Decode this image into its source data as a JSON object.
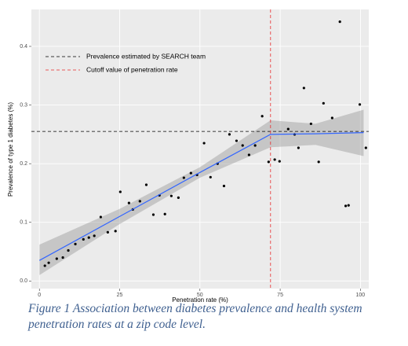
{
  "chart_data": {
    "type": "scatter",
    "x_label": "Penetration rate (%)",
    "y_label": "Prevalence of type 1 diabetes (%)",
    "xlim": [
      -2.5,
      102.6
    ],
    "ylim": [
      -0.013,
      0.463
    ],
    "xticks": [
      0,
      25,
      50,
      75,
      100
    ],
    "yticks": [
      {
        "value": 0,
        "label": "0.0"
      },
      0.1,
      0.2,
      0.3,
      0.4
    ],
    "grid": true,
    "legend_position": "top-left",
    "series": [
      {
        "color": "#000000",
        "x": [
          1.7,
          2.9,
          5.4,
          7.3,
          9.0,
          11.2,
          13.7,
          15.4,
          17.1,
          19.1,
          21.3,
          23.7,
          25.2,
          27.9,
          29.1,
          31.3,
          33.3,
          35.5,
          37.4,
          39.1,
          41.1,
          43.3,
          45.0,
          47.2,
          49.1,
          51.3,
          53.3,
          55.5,
          57.5,
          59.2,
          61.4,
          63.3,
          65.3,
          67.2,
          69.4,
          71.4,
          73.3,
          74.8,
          77.5,
          79.5,
          80.7,
          82.4,
          84.6,
          87.0,
          88.5,
          91.2,
          93.6,
          95.4,
          96.3,
          99.8,
          101.7
        ],
        "values": [
          0.026,
          0.031,
          0.038,
          0.04,
          0.052,
          0.063,
          0.071,
          0.074,
          0.077,
          0.109,
          0.083,
          0.085,
          0.152,
          0.133,
          0.122,
          0.136,
          0.164,
          0.113,
          0.146,
          0.114,
          0.145,
          0.142,
          0.176,
          0.184,
          0.181,
          0.235,
          0.177,
          0.2,
          0.162,
          0.25,
          0.239,
          0.231,
          0.215,
          0.231,
          0.281,
          0.203,
          0.207,
          0.204,
          0.259,
          0.25,
          0.227,
          0.329,
          0.268,
          0.203,
          0.303,
          0.278,
          0.442,
          0.128,
          0.129,
          0.301,
          0.227
        ]
      }
    ],
    "fit": {
      "color": "#3366ff",
      "band_color": "#999999",
      "x": [
        0,
        25,
        50,
        72,
        86,
        101
      ],
      "values": [
        0.035,
        0.11,
        0.185,
        0.25,
        0.251,
        0.253
      ],
      "lower": [
        0.01,
        0.097,
        0.176,
        0.228,
        0.232,
        0.213
      ],
      "upper": [
        0.062,
        0.123,
        0.194,
        0.274,
        0.268,
        0.292
      ]
    },
    "hlines": [
      {
        "name": "Prevalence estimated by SEARCH team",
        "value": 0.255,
        "color": "#000000"
      }
    ],
    "vlines": [
      {
        "name": "Cutoff value of penetration rate",
        "value": 72,
        "color": "#e8292b"
      }
    ]
  },
  "caption": "Figure 1 Association between diabetes prevalence and health system penetration rates at a zip code level."
}
